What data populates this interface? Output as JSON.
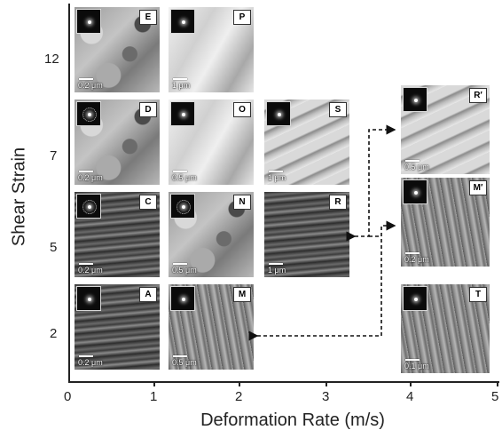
{
  "axes": {
    "x_title": "Deformation Rate (m/s)",
    "y_title": "Shear Strain",
    "x_ticks": [
      "0",
      "1",
      "2",
      "3",
      "4",
      "5"
    ],
    "y_ticks": [
      "12",
      "7",
      "5",
      "2"
    ]
  },
  "panels": [
    {
      "id": "E",
      "label": "E",
      "scale": "0.2 μm",
      "shear_strain": "12",
      "rate_m_s": "<1",
      "tone": "grain"
    },
    {
      "id": "P",
      "label": "P",
      "scale": "1 μm",
      "shear_strain": "12",
      "rate_m_s": "1–2",
      "tone": "light"
    },
    {
      "id": "D",
      "label": "D",
      "scale": "0.2 μm",
      "shear_strain": "7",
      "rate_m_s": "<1",
      "tone": "grain"
    },
    {
      "id": "O",
      "label": "O",
      "scale": "0.5 μm",
      "shear_strain": "7",
      "rate_m_s": "1–2",
      "tone": "light"
    },
    {
      "id": "S",
      "label": "S",
      "scale": "1 μm",
      "shear_strain": "7",
      "rate_m_s": "2–3",
      "tone": "band"
    },
    {
      "id": "R2",
      "label": "R′",
      "scale": "0.5 μm",
      "shear_strain": "7",
      "rate_m_s": "~4",
      "tone": "band"
    },
    {
      "id": "C",
      "label": "C",
      "scale": "0.2 μm",
      "shear_strain": "5",
      "rate_m_s": "<1",
      "tone": "dark"
    },
    {
      "id": "N",
      "label": "N",
      "scale": "0.5 μm",
      "shear_strain": "5",
      "rate_m_s": "1–2",
      "tone": "grain"
    },
    {
      "id": "R",
      "label": "R",
      "scale": "1 μm",
      "shear_strain": "5",
      "rate_m_s": "2–3",
      "tone": "dark"
    },
    {
      "id": "M2",
      "label": "M′",
      "scale": "0.2 μm",
      "shear_strain": "5",
      "rate_m_s": "~4",
      "tone": "streak"
    },
    {
      "id": "A",
      "label": "A",
      "scale": "0.2 μm",
      "shear_strain": "2",
      "rate_m_s": "<1",
      "tone": "dark"
    },
    {
      "id": "M",
      "label": "M",
      "scale": "0.5 μm",
      "shear_strain": "2",
      "rate_m_s": "1–2",
      "tone": "streak"
    },
    {
      "id": "T",
      "label": "T",
      "scale": "0.1 μm",
      "shear_strain": "2",
      "rate_m_s": "~4",
      "tone": "streak"
    }
  ]
}
